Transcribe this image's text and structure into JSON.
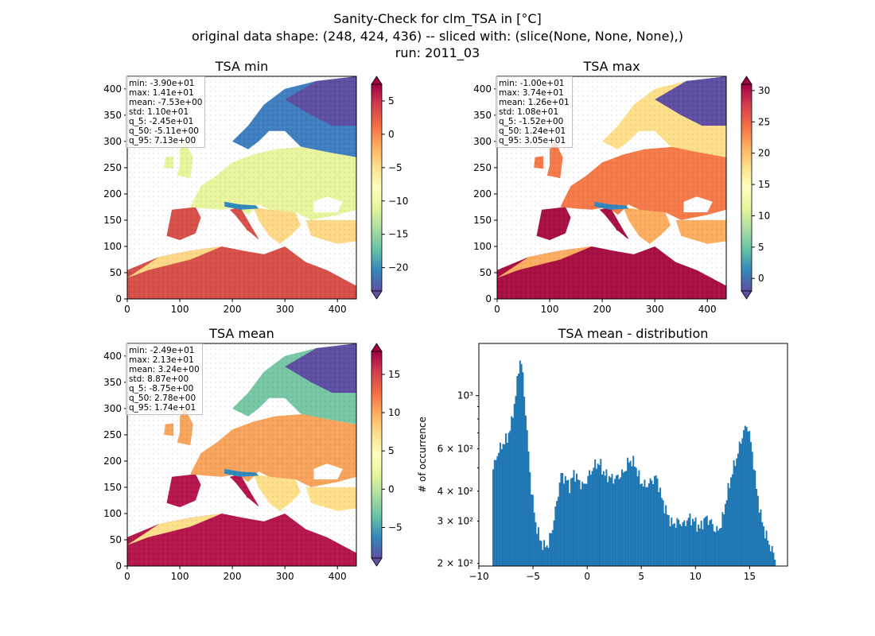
{
  "figure": {
    "title_lines": [
      "Sanity-Check for clm_TSA in [°C]",
      "original data shape: (248, 424, 436) -- sliced with: (slice(None, None, None),)",
      "run: 2011_03"
    ]
  },
  "chart_data": [
    {
      "type": "heatmap",
      "title": "TSA min",
      "x_ticks": [
        "0",
        "100",
        "200",
        "300",
        "400"
      ],
      "y_ticks": [
        "0",
        "50",
        "100",
        "150",
        "200",
        "250",
        "300",
        "350",
        "400"
      ],
      "xlim": [
        0,
        436
      ],
      "ylim": [
        0,
        424
      ],
      "colormap": "Spectral_r",
      "colorbar": {
        "range": [
          -23.5,
          7.5
        ],
        "ticks": [
          "5",
          "0",
          "−5",
          "−10",
          "−15",
          "−20"
        ],
        "tick_values": [
          5,
          0,
          -5,
          -10,
          -15,
          -20
        ],
        "extend": "both"
      },
      "stats": [
        "min: -3.90e+01",
        "max: 1.41e+01",
        "mean: -7.53e+00",
        "std: 1.10e+01",
        "q_5: -2.45e+01",
        "q_50: -5.11e+00",
        "q_95: 7.13e+00"
      ]
    },
    {
      "type": "heatmap",
      "title": "TSA max",
      "x_ticks": [
        "0",
        "100",
        "200",
        "300",
        "400"
      ],
      "y_ticks": [
        "0",
        "50",
        "100",
        "150",
        "200",
        "250",
        "300",
        "350",
        "400"
      ],
      "xlim": [
        0,
        436
      ],
      "ylim": [
        0,
        424
      ],
      "colormap": "Spectral_r",
      "colorbar": {
        "range": [
          -2,
          31
        ],
        "ticks": [
          "30",
          "25",
          "20",
          "15",
          "10",
          "5",
          "0"
        ],
        "tick_values": [
          30,
          25,
          20,
          15,
          10,
          5,
          0
        ],
        "extend": "both"
      },
      "stats": [
        "min: -1.00e+01",
        "max: 3.74e+01",
        "mean: 1.26e+01",
        "std: 1.08e+01",
        "q_5: -1.52e+00",
        "q_50: 1.24e+01",
        "q_95: 3.05e+01"
      ]
    },
    {
      "type": "heatmap",
      "title": "TSA mean",
      "x_ticks": [
        "0",
        "100",
        "200",
        "300",
        "400"
      ],
      "y_ticks": [
        "0",
        "50",
        "100",
        "150",
        "200",
        "250",
        "300",
        "350",
        "400"
      ],
      "xlim": [
        0,
        436
      ],
      "ylim": [
        0,
        424
      ],
      "colormap": "Spectral_r",
      "colorbar": {
        "range": [
          -9,
          18
        ],
        "ticks": [
          "15",
          "10",
          "5",
          "0",
          "−5"
        ],
        "tick_values": [
          15,
          10,
          5,
          0,
          -5
        ],
        "extend": "both"
      },
      "stats": [
        "min: -2.49e+01",
        "max: 2.13e+01",
        "mean: 3.24e+00",
        "std: 8.87e+00",
        "q_5: -8.75e+00",
        "q_50: 2.78e+00",
        "q_95: 1.74e+01"
      ]
    },
    {
      "type": "bar",
      "title": "TSA mean - distribution",
      "xlabel": "",
      "ylabel": "# of occurrence",
      "y_scale": "log",
      "xlim": [
        -10,
        18.5
      ],
      "ylim": [
        195,
        1650
      ],
      "x_ticks": [
        "−10",
        "−5",
        "0",
        "5",
        "10",
        "15"
      ],
      "x_tick_values": [
        -10,
        -5,
        0,
        5,
        10,
        15
      ],
      "y_ticks": [
        "2 × 10²",
        "3 × 10²",
        "4 × 10²",
        "6 × 10²",
        "10³"
      ],
      "y_tick_values": [
        200,
        300,
        400,
        600,
        1000
      ],
      "bin_range": [
        -8.75,
        17.4
      ],
      "bar_color": "#1f77b4",
      "anchors": [
        [
          -8.75,
          480
        ],
        [
          -8.3,
          570
        ],
        [
          -7.8,
          630
        ],
        [
          -7.4,
          660
        ],
        [
          -7.0,
          760
        ],
        [
          -6.6,
          1000
        ],
        [
          -6.2,
          1420
        ],
        [
          -6.0,
          1300
        ],
        [
          -5.8,
          1000
        ],
        [
          -5.5,
          640
        ],
        [
          -5.2,
          420
        ],
        [
          -4.8,
          300
        ],
        [
          -4.4,
          255
        ],
        [
          -4.0,
          235
        ],
        [
          -3.6,
          240
        ],
        [
          -3.2,
          280
        ],
        [
          -2.8,
          360
        ],
        [
          -2.4,
          470
        ],
        [
          -2.0,
          450
        ],
        [
          -1.6,
          420
        ],
        [
          -1.2,
          480
        ],
        [
          -0.8,
          440
        ],
        [
          -0.3,
          420
        ],
        [
          0.2,
          470
        ],
        [
          0.8,
          520
        ],
        [
          1.2,
          520
        ],
        [
          1.6,
          470
        ],
        [
          2.0,
          460
        ],
        [
          2.4,
          450
        ],
        [
          2.9,
          460
        ],
        [
          3.4,
          480
        ],
        [
          3.9,
          540
        ],
        [
          4.4,
          520
        ],
        [
          4.9,
          440
        ],
        [
          5.4,
          420
        ],
        [
          5.9,
          440
        ],
        [
          6.4,
          460
        ],
        [
          6.9,
          370
        ],
        [
          7.4,
          320
        ],
        [
          7.9,
          290
        ],
        [
          8.4,
          300
        ],
        [
          8.9,
          290
        ],
        [
          9.4,
          310
        ],
        [
          9.9,
          300
        ],
        [
          10.4,
          280
        ],
        [
          10.9,
          310
        ],
        [
          11.4,
          300
        ],
        [
          11.9,
          270
        ],
        [
          12.4,
          290
        ],
        [
          12.9,
          380
        ],
        [
          13.4,
          480
        ],
        [
          13.9,
          570
        ],
        [
          14.4,
          700
        ],
        [
          14.8,
          760
        ],
        [
          15.2,
          600
        ],
        [
          15.6,
          420
        ],
        [
          16.0,
          320
        ],
        [
          16.4,
          270
        ],
        [
          16.9,
          235
        ],
        [
          17.4,
          210
        ]
      ]
    }
  ]
}
